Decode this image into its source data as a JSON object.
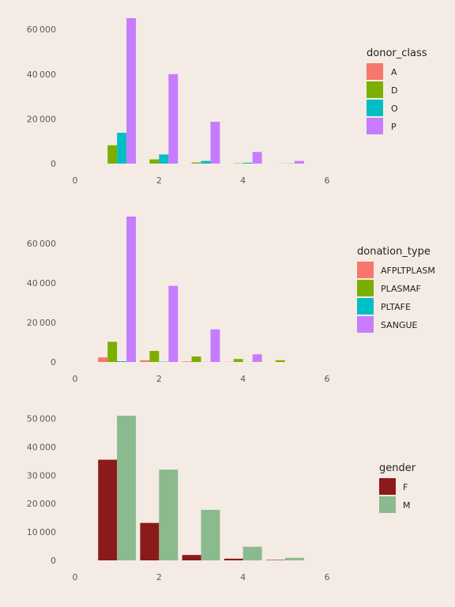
{
  "chart_data": [
    {
      "type": "bar",
      "legend_title": "donor_class",
      "legend_placement": "right",
      "x_ticks": [
        0,
        2,
        4,
        6
      ],
      "xlim": [
        0,
        6
      ],
      "y_ticks": [
        0,
        20000,
        40000,
        60000
      ],
      "ylim": [
        0,
        65000
      ],
      "bar_width": 1,
      "grid": false,
      "series": [
        {
          "name": "A",
          "color": "#f8766d",
          "x": [
            1,
            2,
            3,
            4,
            5
          ],
          "values": [
            0,
            0,
            0,
            0,
            0
          ]
        },
        {
          "name": "D",
          "color": "#7cae00",
          "x": [
            1,
            2,
            3,
            4,
            5
          ],
          "values": [
            8200,
            1900,
            500,
            150,
            50
          ]
        },
        {
          "name": "O",
          "color": "#00bfc4",
          "x": [
            1,
            2,
            3,
            4,
            5
          ],
          "values": [
            13800,
            4100,
            1200,
            400,
            100
          ]
        },
        {
          "name": "P",
          "color": "#c77cff",
          "x": [
            1,
            2,
            3,
            4,
            5
          ],
          "values": [
            65000,
            40000,
            18700,
            5200,
            1200
          ]
        }
      ]
    },
    {
      "type": "bar",
      "legend_title": "donation_type",
      "legend_placement": "right",
      "x_ticks": [
        0,
        2,
        4,
        6
      ],
      "xlim": [
        0,
        6
      ],
      "y_ticks": [
        0,
        20000,
        40000,
        60000
      ],
      "ylim": [
        0,
        73500
      ],
      "bar_width": 1,
      "grid": false,
      "series": [
        {
          "name": "AFPLTPLASM",
          "color": "#f8766d",
          "x": [
            1,
            2,
            3,
            4,
            5
          ],
          "values": [
            2300,
            900,
            300,
            100,
            0
          ]
        },
        {
          "name": "PLASMAF",
          "color": "#7cae00",
          "x": [
            1,
            2,
            3,
            4,
            5
          ],
          "values": [
            10200,
            5600,
            2800,
            1500,
            900
          ]
        },
        {
          "name": "PLTAFE",
          "color": "#00bfc4",
          "x": [
            1,
            2,
            3,
            4,
            5
          ],
          "values": [
            400,
            150,
            60,
            20,
            0
          ]
        },
        {
          "name": "SANGUE",
          "color": "#c77cff",
          "x": [
            1,
            2,
            3,
            4,
            5
          ],
          "values": [
            73500,
            38500,
            16500,
            3900,
            0
          ]
        }
      ]
    },
    {
      "type": "bar",
      "legend_title": "gender",
      "legend_placement": "right",
      "x_ticks": [
        0,
        2,
        4,
        6
      ],
      "xlim": [
        0,
        6
      ],
      "y_ticks": [
        0,
        10000,
        20000,
        30000,
        40000,
        50000
      ],
      "ylim": [
        0,
        51000
      ],
      "bar_width": 1,
      "grid": false,
      "series": [
        {
          "name": "F",
          "color": "#8b1a1a",
          "x": [
            1,
            2,
            3,
            4,
            5
          ],
          "values": [
            35500,
            13200,
            1900,
            600,
            150
          ]
        },
        {
          "name": "M",
          "color": "#8aba8e",
          "x": [
            1,
            2,
            3,
            4,
            5
          ],
          "values": [
            51000,
            32000,
            17800,
            4800,
            900
          ]
        }
      ]
    }
  ]
}
